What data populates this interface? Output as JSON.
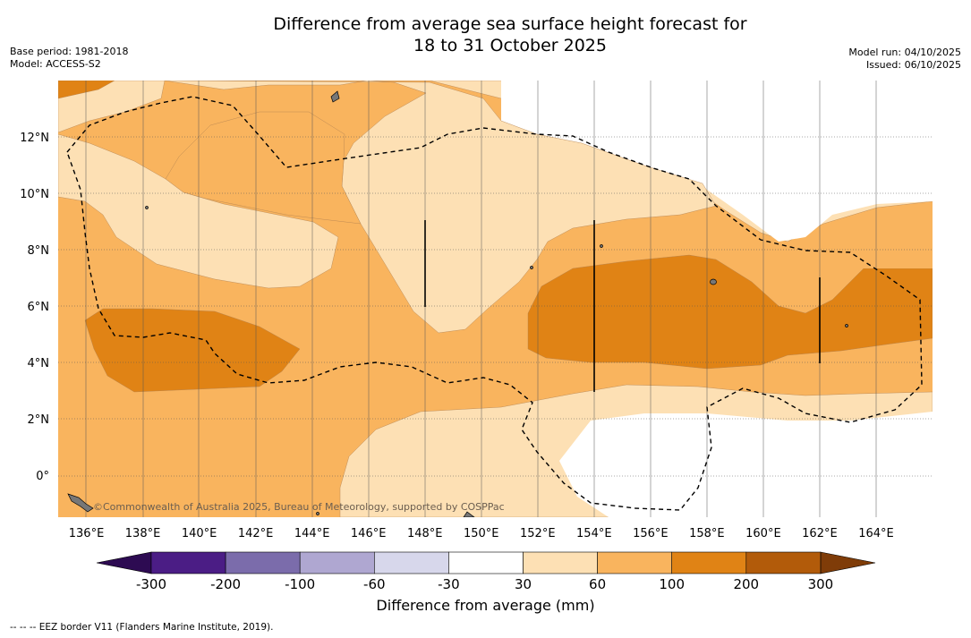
{
  "title": {
    "line1": "Difference from average sea surface height forecast for",
    "line2": "18 to 31 October 2025"
  },
  "meta_left": {
    "base_period": "Base period: 1981-2018",
    "model": "Model: ACCESS-S2"
  },
  "meta_right": {
    "model_run": "Model run: 04/10/2025",
    "issued": "Issued: 06/10/2025"
  },
  "map": {
    "lon_labels": [
      "136°E",
      "138°E",
      "140°E",
      "142°E",
      "144°E",
      "146°E",
      "148°E",
      "150°E",
      "152°E",
      "154°E",
      "156°E",
      "158°E",
      "160°E",
      "162°E",
      "164°E"
    ],
    "lon_values": [
      136,
      138,
      140,
      142,
      144,
      146,
      148,
      150,
      152,
      154,
      156,
      158,
      160,
      162,
      164
    ],
    "lat_labels": [
      "0°",
      "2°N",
      "4°N",
      "6°N",
      "8°N",
      "10°N",
      "12°N"
    ],
    "lat_values": [
      0,
      2,
      4,
      6,
      8,
      10,
      12
    ],
    "lon_range": [
      135,
      166
    ],
    "lat_range": [
      -1.5,
      14
    ],
    "watermark": "©Commonwealth of Australia 2025, Bureau of Meteorology, supported by COSPPac"
  },
  "colorbar": {
    "ticks": [
      "-300",
      "-200",
      "-100",
      "-60",
      "-30",
      "30",
      "60",
      "100",
      "200",
      "300"
    ],
    "bins": [
      {
        "range": "-300 to -200",
        "color": "#4b1d85"
      },
      {
        "range": "-200 to -100",
        "color": "#7b6cab"
      },
      {
        "range": "-100 to -60",
        "color": "#afa7d1"
      },
      {
        "range": "-60 to -30",
        "color": "#d7d7eb"
      },
      {
        "range": "-30 to 30",
        "color": "#ffffff"
      },
      {
        "range": "30 to 60",
        "color": "#fde0b4"
      },
      {
        "range": "60 to 100",
        "color": "#f9b45e"
      },
      {
        "range": "100 to 200",
        "color": "#e08315"
      },
      {
        "range": "200 to 300",
        "color": "#b25b0a"
      }
    ],
    "low_extend_color": "#2d0b52",
    "high_extend_color": "#7f3c08",
    "label": "Difference from average (mm)"
  },
  "footnote": "--  --  -- EEZ border V11 (Flanders Marine Institute, 2019)."
}
